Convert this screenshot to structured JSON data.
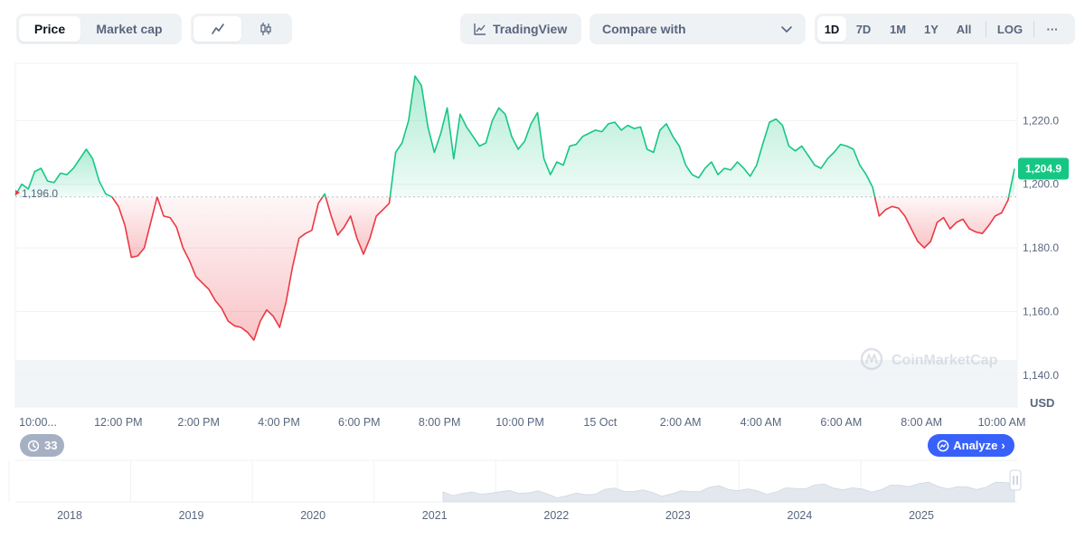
{
  "toolbar": {
    "view_tabs": [
      "Price",
      "Market cap"
    ],
    "active_view": "Price",
    "chart_types": [
      "line-chart-icon",
      "candlestick-icon"
    ],
    "tradingview_label": "TradingView",
    "compare_label": "Compare with",
    "ranges": [
      "1D",
      "7D",
      "1M",
      "1Y",
      "All"
    ],
    "active_range": "1D",
    "log_label": "LOG",
    "more_label": "···"
  },
  "colors": {
    "up": "#16c784",
    "down": "#ea3943",
    "accent": "#3861fb",
    "grid": "#eff2f5"
  },
  "watermark": "CoinMarketCap",
  "currency_label": "USD",
  "history_badge": "33",
  "analyze_label": "Analyze",
  "chart_data": {
    "type": "area",
    "baseline": 1196.0,
    "baseline_label": "1,196.0",
    "current_value": 1204.9,
    "current_label": "1,204.9",
    "ylim": [
      1130,
      1238
    ],
    "y_ticks": [
      {
        "v": 1220,
        "label": "1,220.0"
      },
      {
        "v": 1200,
        "label": "1,200.0"
      },
      {
        "v": 1180,
        "label": "1,180.0"
      },
      {
        "v": 1160,
        "label": "1,160.0"
      },
      {
        "v": 1140,
        "label": "1,140.0"
      }
    ],
    "x_tick_labels": [
      "10:00...",
      "12:00 PM",
      "2:00 PM",
      "4:00 PM",
      "6:00 PM",
      "8:00 PM",
      "10:00 PM",
      "15 Oct",
      "2:00 AM",
      "4:00 AM",
      "6:00 AM",
      "8:00 AM",
      "10:00 AM"
    ],
    "series": [
      1196.5,
      1200.0,
      1198.5,
      1204.0,
      1205.0,
      1201.0,
      1200.5,
      1203.5,
      1203.0,
      1205.0,
      1208.0,
      1211.0,
      1208.0,
      1201.0,
      1197.0,
      1196.0,
      1193.0,
      1187.0,
      1177.0,
      1177.5,
      1180.0,
      1188.0,
      1196.0,
      1190.0,
      1189.5,
      1186.5,
      1180.0,
      1176.0,
      1171.0,
      1169.0,
      1167.0,
      1163.5,
      1161.0,
      1157.0,
      1155.5,
      1155.0,
      1153.5,
      1151.0,
      1157.0,
      1160.5,
      1158.5,
      1155.0,
      1163.0,
      1174.0,
      1183.0,
      1184.5,
      1185.5,
      1194.0,
      1197.0,
      1190.0,
      1184.0,
      1186.5,
      1190.0,
      1183.0,
      1178.0,
      1183.0,
      1190.0,
      1192.0,
      1194.0,
      1210.0,
      1213.0,
      1220.0,
      1234.0,
      1231.0,
      1218.0,
      1210.0,
      1216.0,
      1224.0,
      1208.0,
      1222.0,
      1218.0,
      1215.0,
      1212.0,
      1213.0,
      1220.0,
      1224.0,
      1222.0,
      1215.0,
      1211.0,
      1213.5,
      1219.0,
      1222.5,
      1208.0,
      1203.0,
      1207.0,
      1206.0,
      1212.0,
      1212.5,
      1215.0,
      1216.0,
      1217.0,
      1216.5,
      1219.0,
      1219.5,
      1217.0,
      1218.5,
      1217.5,
      1218.0,
      1211.0,
      1210.0,
      1217.0,
      1219.0,
      1215.0,
      1212.0,
      1206.0,
      1203.0,
      1202.0,
      1205.0,
      1207.0,
      1203.0,
      1205.0,
      1204.5,
      1207.0,
      1205.0,
      1202.5,
      1206.0,
      1213.0,
      1219.5,
      1220.5,
      1218.5,
      1212.0,
      1210.5,
      1212.0,
      1209.0,
      1206.0,
      1205.0,
      1208.0,
      1210.0,
      1212.5,
      1212.0,
      1211.0,
      1206.0,
      1203.0,
      1199.0,
      1190.0,
      1192.0,
      1193.0,
      1192.5,
      1190.0,
      1186.0,
      1182.0,
      1180.0,
      1182.0,
      1188.0,
      1189.5,
      1186.0,
      1188.0,
      1189.0,
      1186.0,
      1185.0,
      1184.5,
      1187.0,
      1190.0,
      1191.0,
      1195.0,
      1204.9
    ],
    "navigator": {
      "years": [
        "2018",
        "2019",
        "2020",
        "2021",
        "2022",
        "2023",
        "2024",
        "2025"
      ]
    }
  }
}
